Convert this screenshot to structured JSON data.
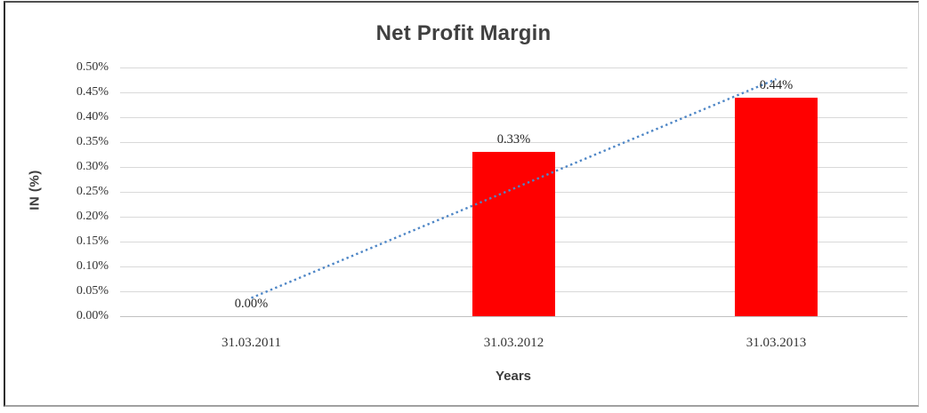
{
  "chart_data": {
    "type": "bar",
    "title": "Net Profit Margin",
    "xlabel": "Years",
    "ylabel": "IN (%)",
    "categories": [
      "31.03.2011",
      "31.03.2012",
      "31.03.2013"
    ],
    "values": [
      0.0,
      0.33,
      0.44
    ],
    "data_labels": [
      "0.00%",
      "0.33%",
      "0.44%"
    ],
    "ylim": [
      0,
      0.5
    ],
    "ytick_values": [
      0.5,
      0.45,
      0.4,
      0.35,
      0.3,
      0.25,
      0.2,
      0.15,
      0.1,
      0.05,
      0.0
    ],
    "ytick_labels": [
      "0.50%",
      "0.45%",
      "0.40%",
      "0.35%",
      "0.30%",
      "0.25%",
      "0.20%",
      "0.15%",
      "0.10%",
      "0.05%",
      "0.00%"
    ],
    "grid": true,
    "legend": "none",
    "bar_color": "#ff0000",
    "gridline_color": "#d9d9d9",
    "axis_line_color": "#c0c0c0",
    "title_color": "#404040",
    "tick_color": "#333333",
    "trendline": {
      "type": "linear",
      "style": "dotted",
      "color": "#4e86c6"
    }
  }
}
